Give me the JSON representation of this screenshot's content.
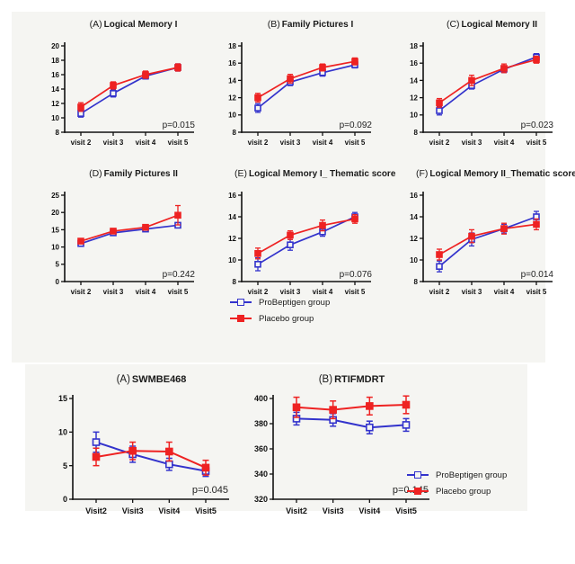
{
  "legend": {
    "probeptigen": "ProBeptigen group",
    "placebo": "Placebo group"
  },
  "colors": {
    "probeptigen": "#3333cc",
    "placebo": "#ee2222",
    "figure_background": "#f5f5f2",
    "axis": "#111111"
  },
  "chart_data": [
    {
      "type": "line",
      "panel_label": "(A)",
      "title": "Logical Memory I",
      "p_value": "p=0.015",
      "x_labels": [
        "visit 2",
        "visit 3",
        "visit 4",
        "visit 5"
      ],
      "ylim": [
        8,
        20
      ],
      "yticks": [
        8,
        10,
        12,
        14,
        16,
        18,
        20
      ],
      "series": [
        {
          "name": "ProBeptigen group",
          "color": "#3333cc",
          "marker": "open",
          "values": [
            10.6,
            13.4,
            15.8,
            17.0
          ],
          "errors": [
            0.5,
            0.5,
            0.4,
            0.5
          ]
        },
        {
          "name": "Placebo group",
          "color": "#ee2222",
          "marker": "filled",
          "values": [
            11.5,
            14.5,
            16.0,
            17.0
          ],
          "errors": [
            0.6,
            0.5,
            0.5,
            0.5
          ]
        }
      ]
    },
    {
      "type": "line",
      "panel_label": "(B)",
      "title": "Family Pictures I",
      "p_value": "p=0.092",
      "x_labels": [
        "visit 2",
        "visit 3",
        "visit 4",
        "visit 5"
      ],
      "ylim": [
        8,
        18
      ],
      "yticks": [
        8,
        10,
        12,
        14,
        16,
        18
      ],
      "series": [
        {
          "name": "ProBeptigen group",
          "color": "#3333cc",
          "marker": "open",
          "values": [
            10.8,
            13.8,
            14.9,
            15.8
          ],
          "errors": [
            0.5,
            0.4,
            0.4,
            0.35
          ]
        },
        {
          "name": "Placebo group",
          "color": "#ee2222",
          "marker": "filled",
          "values": [
            12.0,
            14.2,
            15.5,
            16.2
          ],
          "errors": [
            0.5,
            0.5,
            0.4,
            0.4
          ]
        }
      ]
    },
    {
      "type": "line",
      "panel_label": "(C)",
      "title": "Logical Memory II",
      "p_value": "p=0.023",
      "x_labels": [
        "visit 2",
        "visit 3",
        "visit 4",
        "visit 5"
      ],
      "ylim": [
        8,
        18
      ],
      "yticks": [
        8,
        10,
        12,
        14,
        16,
        18
      ],
      "series": [
        {
          "name": "ProBeptigen group",
          "color": "#3333cc",
          "marker": "open",
          "values": [
            10.5,
            13.4,
            15.3,
            16.7
          ],
          "errors": [
            0.5,
            0.4,
            0.4,
            0.4
          ]
        },
        {
          "name": "Placebo group",
          "color": "#ee2222",
          "marker": "filled",
          "values": [
            11.4,
            14.0,
            15.4,
            16.4
          ],
          "errors": [
            0.5,
            0.6,
            0.5,
            0.4
          ]
        }
      ]
    },
    {
      "type": "line",
      "panel_label": "(D)",
      "title": "Family Pictures II",
      "p_value": "p=0.242",
      "x_labels": [
        "visit 2",
        "visit 3",
        "visit 4",
        "visit 5"
      ],
      "ylim": [
        0,
        25
      ],
      "yticks": [
        0,
        5,
        10,
        15,
        20,
        25
      ],
      "series": [
        {
          "name": "ProBeptigen group",
          "color": "#3333cc",
          "marker": "open",
          "values": [
            11.0,
            14.1,
            15.2,
            16.3
          ],
          "errors": [
            0.6,
            0.6,
            0.5,
            0.7
          ]
        },
        {
          "name": "Placebo group",
          "color": "#ee2222",
          "marker": "filled",
          "values": [
            11.7,
            14.6,
            15.7,
            19.2
          ],
          "errors": [
            0.7,
            0.7,
            0.6,
            2.8
          ]
        }
      ]
    },
    {
      "type": "line",
      "panel_label": "(E)",
      "title": "Logical Memory I_ Thematic score",
      "p_value": "p=0.076",
      "x_labels": [
        "visit 2",
        "visit 3",
        "visit 4",
        "visit 5"
      ],
      "ylim": [
        8,
        16
      ],
      "yticks": [
        8,
        10,
        12,
        14,
        16
      ],
      "series": [
        {
          "name": "ProBeptigen group",
          "color": "#3333cc",
          "marker": "open",
          "values": [
            9.6,
            11.4,
            12.6,
            14.0
          ],
          "errors": [
            0.6,
            0.5,
            0.4,
            0.4
          ]
        },
        {
          "name": "Placebo group",
          "color": "#ee2222",
          "marker": "filled",
          "values": [
            10.6,
            12.3,
            13.2,
            13.8
          ],
          "errors": [
            0.5,
            0.4,
            0.5,
            0.4
          ]
        }
      ]
    },
    {
      "type": "line",
      "panel_label": "(F)",
      "title": "Logical Memory II_Thematic score",
      "p_value": "p=0.014",
      "x_labels": [
        "visit 2",
        "visit 3",
        "visit 4",
        "visit 5"
      ],
      "ylim": [
        8,
        16
      ],
      "yticks": [
        8,
        10,
        12,
        14,
        16
      ],
      "series": [
        {
          "name": "ProBeptigen group",
          "color": "#3333cc",
          "marker": "open",
          "values": [
            9.4,
            11.9,
            12.9,
            14.0
          ],
          "errors": [
            0.5,
            0.6,
            0.4,
            0.5
          ]
        },
        {
          "name": "Placebo group",
          "color": "#ee2222",
          "marker": "filled",
          "values": [
            10.5,
            12.2,
            12.9,
            13.3
          ],
          "errors": [
            0.5,
            0.6,
            0.5,
            0.5
          ]
        }
      ]
    },
    {
      "type": "line",
      "panel_label": "(A)",
      "title": "SWMBE468",
      "p_value": "p=0.045",
      "x_labels": [
        "Visit2",
        "Visit3",
        "Visit4",
        "Visit5"
      ],
      "ylim": [
        0,
        15
      ],
      "yticks": [
        0,
        5,
        10,
        15
      ],
      "series": [
        {
          "name": "ProBeptigen group",
          "color": "#3333cc",
          "marker": "open",
          "values": [
            8.5,
            6.7,
            5.2,
            4.2
          ],
          "errors": [
            1.5,
            1.2,
            0.9,
            0.8
          ]
        },
        {
          "name": "Placebo group",
          "color": "#ee2222",
          "marker": "filled",
          "values": [
            6.3,
            7.2,
            7.1,
            4.7
          ],
          "errors": [
            1.3,
            1.3,
            1.4,
            1.1
          ]
        }
      ]
    },
    {
      "type": "line",
      "panel_label": "(B)",
      "title": "RTIFMDRT",
      "p_value": "p=0.145",
      "x_labels": [
        "Visit2",
        "Visit3",
        "Visit4",
        "Visit5"
      ],
      "ylim": [
        320,
        400
      ],
      "yticks": [
        320,
        340,
        360,
        380,
        400
      ],
      "series": [
        {
          "name": "ProBeptigen group",
          "color": "#3333cc",
          "marker": "open",
          "values": [
            384,
            383,
            377,
            379
          ],
          "errors": [
            5,
            5,
            5,
            5
          ]
        },
        {
          "name": "Placebo group",
          "color": "#ee2222",
          "marker": "filled",
          "values": [
            393,
            391,
            394,
            395
          ],
          "errors": [
            8,
            7,
            7,
            7
          ]
        }
      ]
    }
  ]
}
